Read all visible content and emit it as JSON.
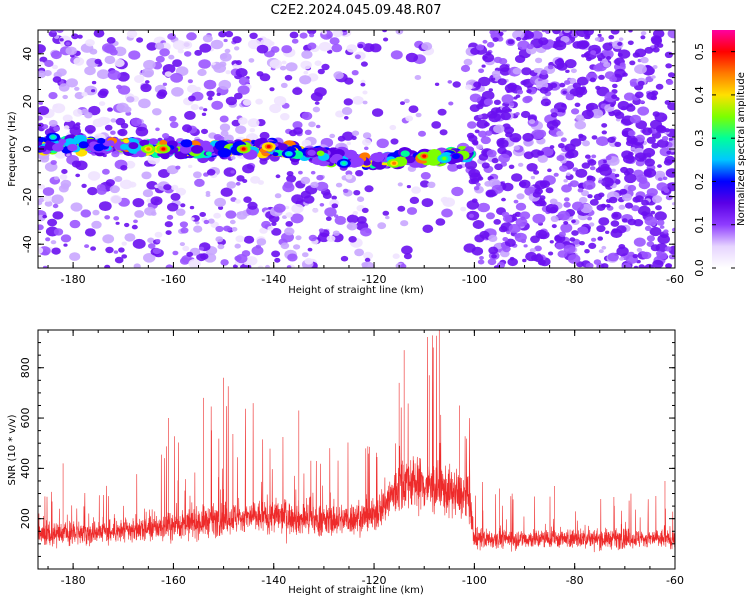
{
  "figure": {
    "title": "C2E2.2024.045.09.48.R07"
  },
  "chart_data": [
    {
      "type": "heatmap",
      "xlabel": "Height of straight line (km)",
      "ylabel": "Frequency (Hz)",
      "xlim": [
        -187,
        -60
      ],
      "ylim": [
        -50,
        50
      ],
      "xticks": [
        -180,
        -160,
        -140,
        -120,
        -100,
        -80,
        -60
      ],
      "yticks": [
        -40,
        -20,
        0,
        20,
        40
      ],
      "colorbar": {
        "label": "Normalized spectral amplitude",
        "range": [
          0.0,
          0.55
        ],
        "ticks": [
          0.0,
          0.1,
          0.2,
          0.3,
          0.4,
          0.5
        ],
        "colors": [
          "#ffffff",
          "#e6d4ff",
          "#8f3cff",
          "#5a00e6",
          "#0000ff",
          "#00c8ff",
          "#00ff9a",
          "#7cff00",
          "#ffe000",
          "#ff7a00",
          "#ff0000",
          "#ff00a0"
        ]
      },
      "band": {
        "center_frequency_hz": [
          [
            -187,
            2
          ],
          [
            -170,
            1
          ],
          [
            -160,
            0
          ],
          [
            -150,
            0
          ],
          [
            -140,
            1
          ],
          [
            -130,
            -3
          ],
          [
            -120,
            -5
          ],
          [
            -110,
            -4
          ],
          [
            -102,
            -2
          ]
        ],
        "x_end": -101,
        "hotspots": [
          {
            "x": -165,
            "y": 0,
            "amp": 0.45
          },
          {
            "x": -162,
            "y": 0,
            "amp": 0.5
          },
          {
            "x": -146,
            "y": 0,
            "amp": 0.5
          },
          {
            "x": -141,
            "y": 1,
            "amp": 0.52
          },
          {
            "x": -137,
            "y": -2,
            "amp": 0.3
          },
          {
            "x": -126,
            "y": -6,
            "amp": 0.3
          },
          {
            "x": -116,
            "y": -6,
            "amp": 0.45
          },
          {
            "x": -110,
            "y": -3,
            "amp": 0.5
          },
          {
            "x": -106,
            "y": -4,
            "amp": 0.35
          },
          {
            "x": -184,
            "y": 5,
            "amp": 0.3
          }
        ]
      },
      "grid": false,
      "grid_note": "Speckled noise background, sparse between -120 and -101 km, dense after -101 km."
    },
    {
      "type": "line",
      "xlabel": "Height of straight line (km)",
      "ylabel": "SNR (10 * v/v)",
      "xlim": [
        -187,
        -60
      ],
      "ylim": [
        0,
        950
      ],
      "xticks": [
        -180,
        -160,
        -140,
        -120,
        -100,
        -80,
        -60
      ],
      "yticks": [
        200,
        400,
        600,
        800
      ],
      "color": "#ee2a2a",
      "grid": false,
      "envelope": [
        {
          "x": -187,
          "base": 140,
          "peak": 300
        },
        {
          "x": -170,
          "base": 150,
          "peak": 350
        },
        {
          "x": -160,
          "base": 170,
          "peak": 550
        },
        {
          "x": -150,
          "base": 200,
          "peak": 750
        },
        {
          "x": -140,
          "base": 210,
          "peak": 650
        },
        {
          "x": -130,
          "base": 190,
          "peak": 500
        },
        {
          "x": -120,
          "base": 210,
          "peak": 550
        },
        {
          "x": -114,
          "base": 350,
          "peak": 870
        },
        {
          "x": -107,
          "base": 320,
          "peak": 950
        },
        {
          "x": -101,
          "base": 280,
          "peak": 640
        },
        {
          "x": -100,
          "base": 120,
          "peak": 350
        },
        {
          "x": -80,
          "base": 120,
          "peak": 310
        },
        {
          "x": -60,
          "base": 120,
          "peak": 300
        }
      ],
      "peaks": [
        {
          "x": -188,
          "y": 320
        },
        {
          "x": -182,
          "y": 420
        },
        {
          "x": -161,
          "y": 600
        },
        {
          "x": -150,
          "y": 760
        },
        {
          "x": -154,
          "y": 680
        },
        {
          "x": -135,
          "y": 630
        },
        {
          "x": -114,
          "y": 870
        },
        {
          "x": -115,
          "y": 740
        },
        {
          "x": -109,
          "y": 770
        },
        {
          "x": -107,
          "y": 950
        },
        {
          "x": -103,
          "y": 650
        },
        {
          "x": -95,
          "y": 320
        },
        {
          "x": -84,
          "y": 330
        },
        {
          "x": -62,
          "y": 350
        }
      ]
    }
  ]
}
